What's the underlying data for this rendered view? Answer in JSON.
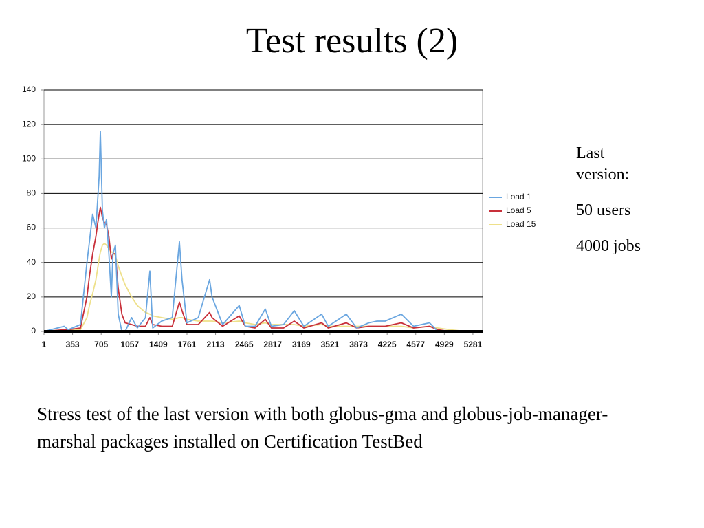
{
  "title": "Test results (2)",
  "notes": [
    "Last version:",
    "50 users",
    "4000 jobs"
  ],
  "caption": "Stress test of the last version with both globus-gma and globus-job-manager-marshal packages installed on Certification TestBed",
  "chart_data": {
    "type": "line",
    "x": [
      1,
      250,
      300,
      450,
      530,
      560,
      600,
      640,
      660,
      680,
      695,
      720,
      745,
      771,
      800,
      830,
      850,
      880,
      915,
      960,
      1000,
      1080,
      1150,
      1250,
      1304,
      1340,
      1450,
      1580,
      1668,
      1700,
      1760,
      1900,
      2040,
      2070,
      2200,
      2404,
      2480,
      2600,
      2725,
      2800,
      2950,
      3081,
      3200,
      3419,
      3500,
      3723,
      3850,
      4000,
      4100,
      4200,
      4400,
      4550,
      4747,
      4850,
      5000,
      5200,
      5400
    ],
    "series": [
      {
        "name": "Load 1",
        "color": "#6aa6e0",
        "values": [
          0,
          3,
          1,
          4,
          40,
          52,
          68,
          60,
          75,
          90,
          116,
          70,
          60,
          65,
          45,
          20,
          45,
          50,
          10,
          0,
          0,
          8,
          2,
          8,
          35,
          2,
          6,
          8,
          52,
          30,
          5,
          8,
          30,
          20,
          4,
          15,
          3,
          3,
          13,
          3,
          4,
          12,
          3,
          10,
          3,
          10,
          2,
          5,
          6,
          6,
          10,
          3,
          5,
          0,
          0,
          0,
          0
        ]
      },
      {
        "name": "Load 5",
        "color": "#c8303a",
        "values": [
          0,
          1,
          1,
          2,
          20,
          32,
          45,
          55,
          62,
          68,
          72,
          66,
          63,
          62,
          55,
          42,
          45,
          45,
          25,
          10,
          5,
          4,
          3,
          3,
          8,
          4,
          3,
          3,
          17,
          12,
          4,
          4,
          11,
          8,
          3,
          9,
          3,
          2,
          7,
          2,
          2,
          6,
          2,
          5,
          2,
          5,
          2,
          3,
          3,
          3,
          5,
          2,
          3,
          1,
          0,
          0,
          0
        ]
      },
      {
        "name": "Load 15",
        "color": "#eee08a",
        "values": [
          0,
          1,
          1,
          1,
          8,
          15,
          22,
          30,
          36,
          42,
          46,
          50,
          51,
          50,
          48,
          46,
          46,
          44,
          38,
          32,
          27,
          20,
          15,
          11,
          10,
          9,
          8,
          7,
          8,
          8,
          7,
          6,
          6,
          6,
          5,
          6,
          5,
          4,
          5,
          4,
          4,
          4,
          3,
          4,
          3,
          3,
          3,
          3,
          3,
          3,
          3,
          2,
          3,
          2,
          1,
          0,
          0
        ]
      }
    ],
    "xlim": [
      1,
      5400
    ],
    "xticks": [
      1,
      353,
      705,
      1057,
      1409,
      1761,
      2113,
      2465,
      2817,
      3169,
      3521,
      3873,
      4225,
      4577,
      4929,
      5281
    ],
    "ylim": [
      0,
      140
    ],
    "yticks": [
      0,
      20,
      40,
      60,
      80,
      100,
      120,
      140
    ],
    "grid": true,
    "legend": "right"
  }
}
